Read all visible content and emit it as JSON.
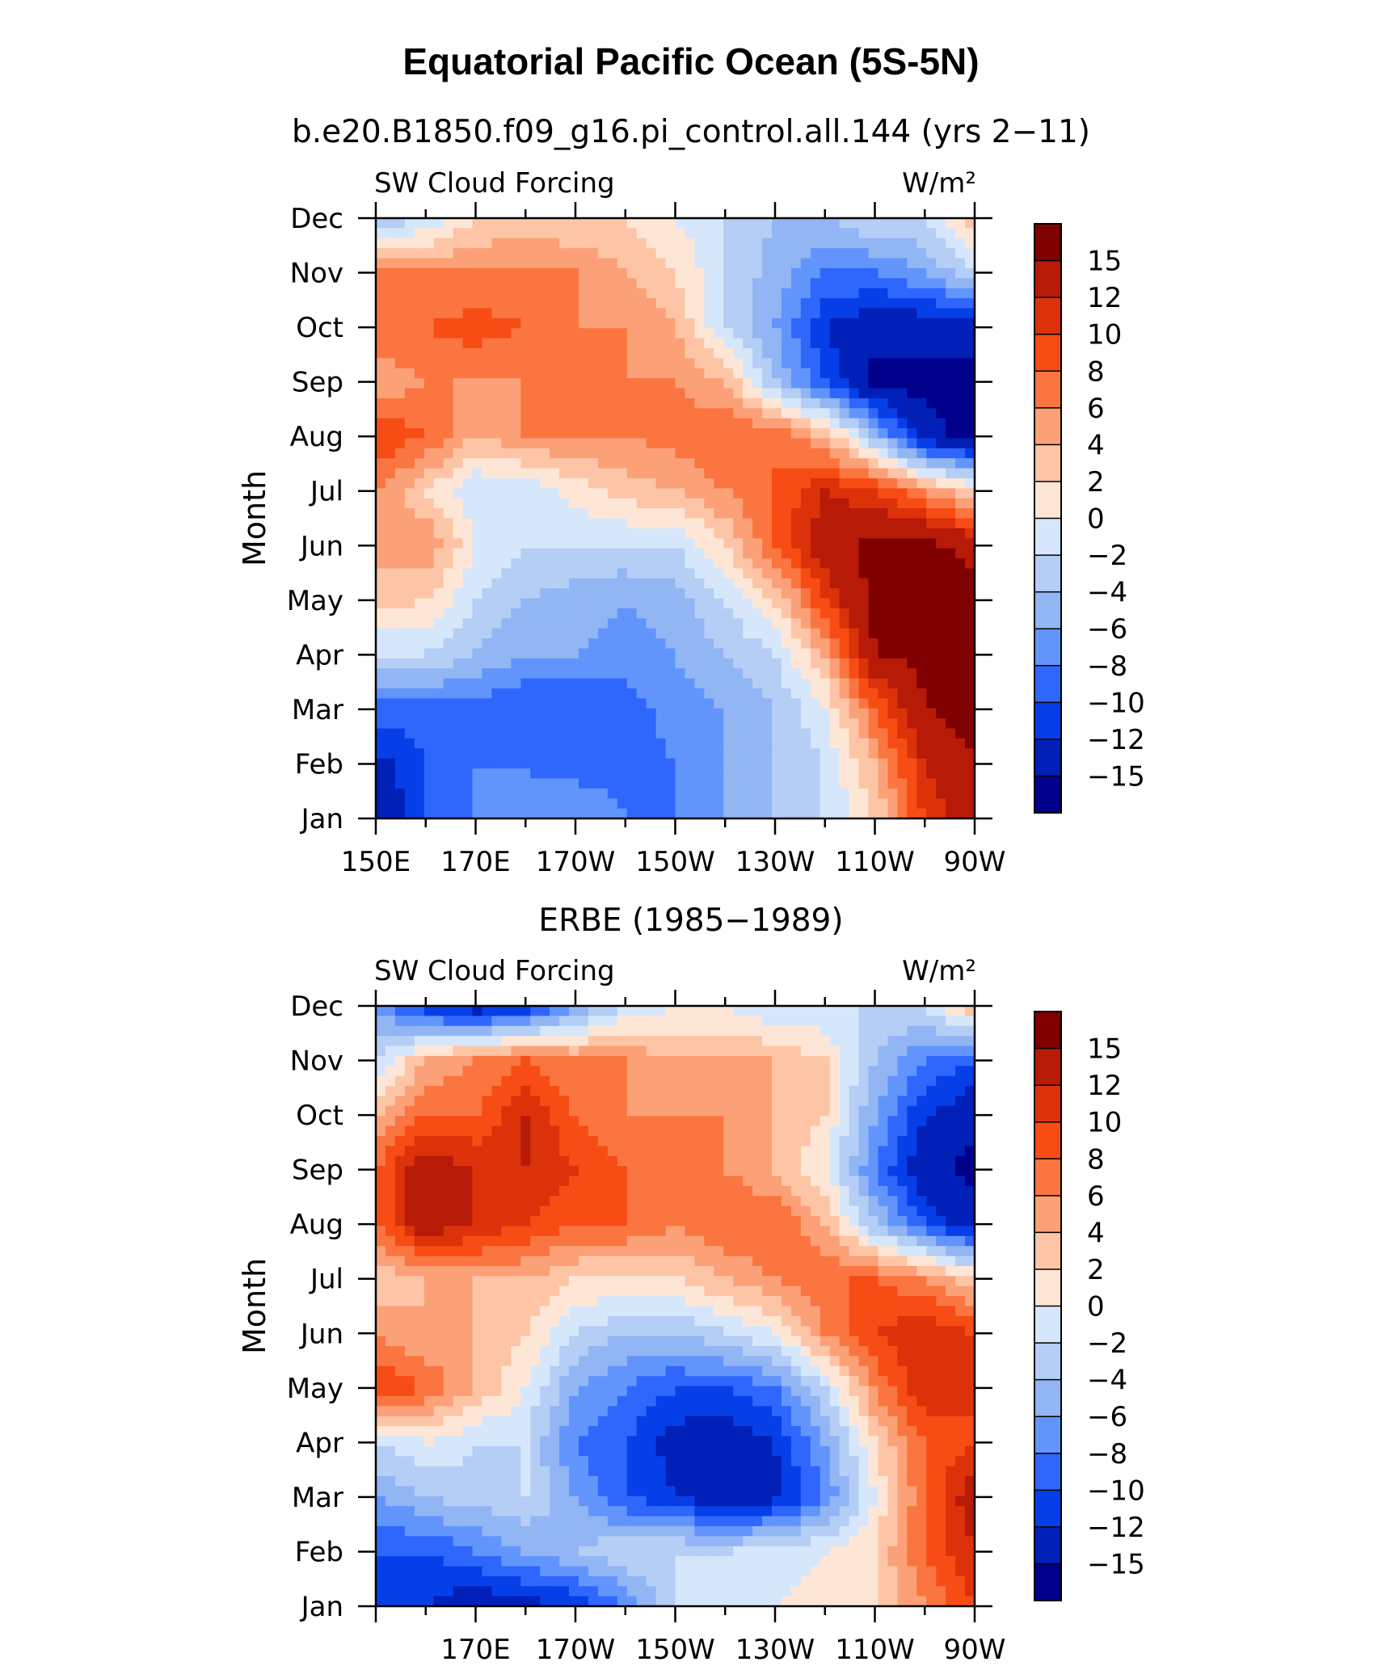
{
  "figure": {
    "title": "Equatorial Pacific Ocean (5S-5N)",
    "case_label": "b.e20.B1850.f09_g16.pi_control.all.144 (yrs 2−11)",
    "obs_label": "ERBE (1985−1989)"
  },
  "chart_data": [
    {
      "type": "heatmap",
      "name": "model",
      "variable": "SW Cloud Forcing",
      "units": "W/m²",
      "ylabel": "Month",
      "y_categories": [
        "Jan",
        "Feb",
        "Mar",
        "Apr",
        "May",
        "Jun",
        "Jul",
        "Aug",
        "Sep",
        "Oct",
        "Nov",
        "Dec"
      ],
      "x_ticks": [
        "150E",
        "170E",
        "170W",
        "150W",
        "130W",
        "110W",
        "90W"
      ],
      "x_tick_lon": [
        150,
        170,
        190,
        210,
        230,
        250,
        270
      ],
      "xlim": [
        150,
        270
      ],
      "colorbar_levels": [
        "15",
        "12",
        "10",
        "8",
        "6",
        "4",
        "2",
        "0",
        "−2",
        "−4",
        "−6",
        "−8",
        "−10",
        "−12",
        "−15"
      ],
      "colors": [
        "#800000",
        "#b81a08",
        "#dc320a",
        "#f84c15",
        "#fa7540",
        "#fca077",
        "#fdc5a6",
        "#fee6d6",
        "#d7e7fb",
        "#b4cef6",
        "#92b5f4",
        "#6295fc",
        "#2f67fd",
        "#063fe8",
        "#0020b8",
        "#00008b"
      ],
      "lon": [
        150,
        160,
        170,
        180,
        190,
        200,
        210,
        220,
        230,
        240,
        250,
        260,
        270
      ],
      "values": [
        [
          -15,
          -10,
          -8,
          -8,
          -6,
          -8,
          -8,
          -6,
          -4,
          -2,
          2,
          10,
          15
        ],
        [
          -13,
          -10,
          -8,
          -8,
          -9,
          -9,
          -8,
          -6,
          -4,
          -2,
          4,
          12,
          15
        ],
        [
          -9,
          -9,
          -9,
          -10,
          -10,
          -9,
          -7,
          -6,
          -4,
          0,
          8,
          15,
          16
        ],
        [
          -2,
          -2,
          -4,
          -6,
          -6,
          -7,
          -6,
          -4,
          -2,
          4,
          15,
          16,
          16
        ],
        [
          3,
          2,
          -2,
          -4,
          -5,
          -6,
          -5,
          -2,
          2,
          10,
          16,
          16,
          16
        ],
        [
          5,
          6,
          0,
          -2,
          -2,
          -2,
          -2,
          2,
          8,
          14,
          16,
          16,
          14
        ],
        [
          6,
          2,
          -2,
          -2,
          1,
          3,
          4,
          6,
          8,
          12,
          10,
          6,
          2
        ],
        [
          10,
          8,
          4,
          6,
          6,
          6,
          7,
          8,
          8,
          4,
          -4,
          -14,
          -16
        ],
        [
          4,
          6,
          6,
          6,
          6,
          6,
          6,
          4,
          -4,
          -10,
          -16,
          -16,
          -16
        ],
        [
          8,
          8,
          9,
          8,
          6,
          6,
          4,
          -2,
          -6,
          -12,
          -14,
          -14,
          -14
        ],
        [
          6,
          6,
          6,
          6,
          6,
          4,
          2,
          -2,
          -5,
          -8,
          -8,
          -6,
          -2
        ],
        [
          -4,
          -2,
          2,
          3,
          2,
          2,
          0,
          -2,
          -4,
          -4,
          -2,
          -2,
          4
        ]
      ]
    },
    {
      "type": "heatmap",
      "name": "observations",
      "variable": "SW Cloud Forcing",
      "units": "W/m²",
      "ylabel": "Month",
      "y_categories": [
        "Jan",
        "Feb",
        "Mar",
        "Apr",
        "May",
        "Jun",
        "Jul",
        "Aug",
        "Sep",
        "Oct",
        "Nov",
        "Dec"
      ],
      "x_ticks": [
        "170E",
        "170W",
        "150W",
        "130W",
        "110W",
        "90W"
      ],
      "x_tick_lon": [
        170,
        190,
        210,
        230,
        250,
        270
      ],
      "xlim": [
        150,
        270
      ],
      "colorbar_levels": [
        "15",
        "12",
        "10",
        "8",
        "6",
        "4",
        "2",
        "0",
        "−2",
        "−4",
        "−6",
        "−8",
        "−10",
        "−12",
        "−15"
      ],
      "colors": [
        "#800000",
        "#b81a08",
        "#dc320a",
        "#f84c15",
        "#fa7540",
        "#fca077",
        "#fdc5a6",
        "#fee6d6",
        "#d7e7fb",
        "#b4cef6",
        "#92b5f4",
        "#6295fc",
        "#2f67fd",
        "#063fe8",
        "#0020b8",
        "#00008b"
      ],
      "lon": [
        150,
        160,
        170,
        180,
        190,
        200,
        210,
        220,
        230,
        240,
        250,
        260,
        270
      ],
      "values": [
        [
          -10,
          -12,
          -14,
          -13,
          -12,
          -8,
          -2,
          0,
          0,
          1,
          2,
          6,
          10
        ],
        [
          -10,
          -10,
          -8,
          -6,
          -4,
          -2,
          -2,
          -2,
          -1,
          0,
          2,
          8,
          12
        ],
        [
          -6,
          -4,
          -3,
          -2,
          -6,
          -10,
          -12,
          -14,
          -13,
          -8,
          0,
          8,
          14
        ],
        [
          -2,
          0,
          -2,
          -2,
          -8,
          -10,
          -13,
          -14,
          -12,
          -6,
          2,
          8,
          10
        ],
        [
          10,
          8,
          4,
          0,
          -6,
          -8,
          -10,
          -10,
          -8,
          -2,
          6,
          12,
          10
        ],
        [
          6,
          4,
          4,
          2,
          -2,
          -4,
          -4,
          -2,
          0,
          6,
          10,
          12,
          10
        ],
        [
          2,
          4,
          4,
          4,
          2,
          2,
          2,
          4,
          6,
          8,
          8,
          6,
          2
        ],
        [
          8,
          14,
          12,
          10,
          8,
          8,
          6,
          8,
          8,
          4,
          -4,
          -10,
          -14
        ],
        [
          8,
          14,
          12,
          12,
          10,
          8,
          8,
          6,
          4,
          0,
          -8,
          -14,
          -16
        ],
        [
          4,
          8,
          8,
          12,
          8,
          6,
          6,
          6,
          4,
          2,
          -6,
          -12,
          -14
        ],
        [
          -2,
          4,
          6,
          8,
          6,
          6,
          4,
          4,
          4,
          2,
          -4,
          -8,
          -10
        ],
        [
          -6,
          -12,
          -14,
          -12,
          -6,
          -2,
          0,
          0,
          -2,
          -2,
          -2,
          -2,
          4
        ]
      ]
    }
  ]
}
